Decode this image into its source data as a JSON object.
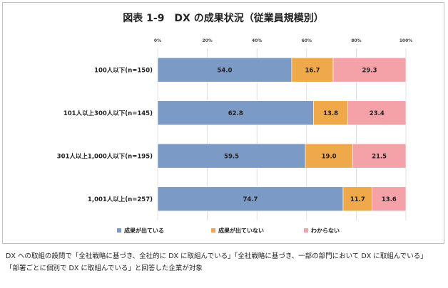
{
  "chart_data": {
    "type": "bar",
    "orientation": "horizontal",
    "stacked": "percent",
    "title": "図表 1-9　DX の成果状況（従業員規模別）",
    "categories": [
      "100人以下(n=150)",
      "101人以上300人以下(n=145)",
      "301人以上1,000人以下(n=195)",
      "1,001人以上(n=257)"
    ],
    "series": [
      {
        "name": "成果が出ている",
        "values": [
          54.0,
          62.8,
          59.5,
          74.7
        ],
        "labels": [
          "54.0",
          "62.8",
          "59.5",
          "74.7"
        ],
        "color": "#7b9ac6"
      },
      {
        "name": "成果が出ていない",
        "values": [
          16.7,
          13.8,
          19.0,
          11.7
        ],
        "labels": [
          "16.7",
          "13.8",
          "19.0",
          "11.7"
        ],
        "color": "#f0a94a"
      },
      {
        "name": "わからない",
        "values": [
          29.3,
          23.4,
          21.5,
          13.6
        ],
        "labels": [
          "29.3",
          "23.4",
          "21.5",
          "13.6"
        ],
        "color": "#f4a2a8"
      }
    ],
    "xticks": [
      "0%",
      "20%",
      "40%",
      "60%",
      "80%",
      "100%"
    ],
    "xlim": [
      0,
      100
    ],
    "grid": true,
    "legend": "bottom"
  },
  "note": {
    "line1": "DX への取組の設問で「全社戦略に基づき、全社的に DX に取組んでいる」「全社戦略に基づき、一部の部門において DX に取組んでいる」",
    "line2": "「部署ごとに個別で DX に取組んでいる」と回答した企業が対象"
  }
}
